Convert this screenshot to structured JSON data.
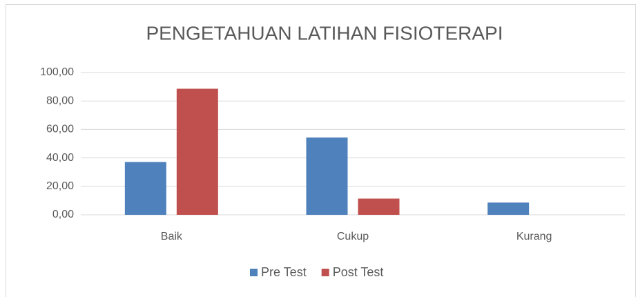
{
  "chart_data": {
    "type": "bar",
    "title": "PENGETAHUAN LATIHAN FISIOTERAPI",
    "categories": [
      "Baik",
      "Cukup",
      "Kurang"
    ],
    "series": [
      {
        "name": "Pre Test",
        "color": "#4f81bd",
        "values": [
          37.1,
          54.3,
          8.6
        ]
      },
      {
        "name": "Post Test",
        "color": "#c0504d",
        "values": [
          88.6,
          11.4,
          0
        ]
      }
    ],
    "ylim": [
      0,
      100
    ],
    "yticks": [
      {
        "value": 0,
        "label": "0,00"
      },
      {
        "value": 20,
        "label": "20,00"
      },
      {
        "value": 40,
        "label": "40,00"
      },
      {
        "value": 60,
        "label": "60,00"
      },
      {
        "value": 80,
        "label": "80,00"
      },
      {
        "value": 100,
        "label": "100,00"
      }
    ],
    "grid": true,
    "legend": "bottom"
  }
}
